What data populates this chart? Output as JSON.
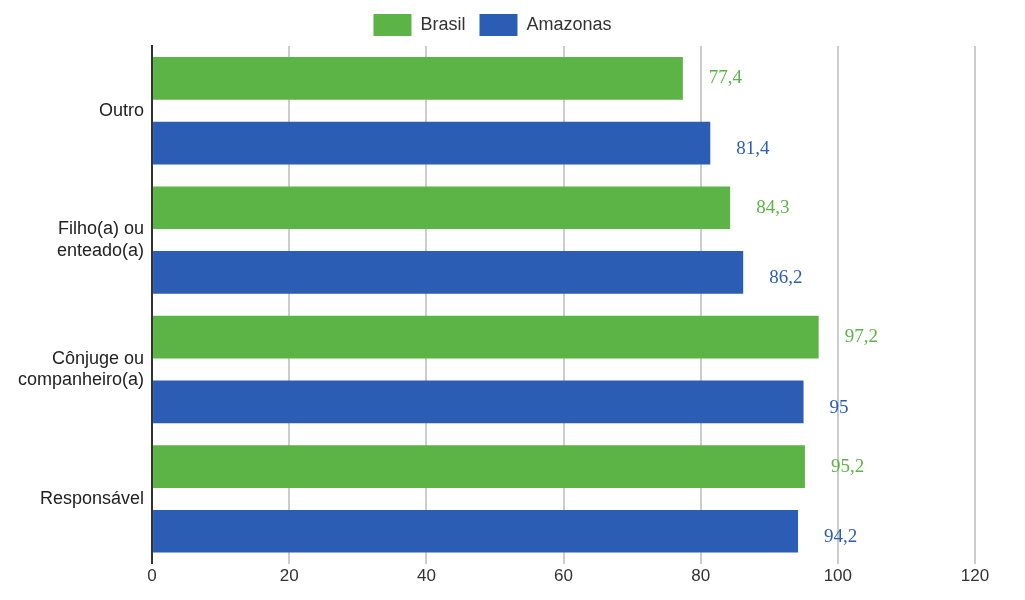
{
  "chart_data": {
    "type": "bar",
    "orientation": "horizontal",
    "categories": [
      "Outro",
      "Filho(a) ou enteado(a)",
      "Cônjuge ou companheiro(a)",
      "Responsável"
    ],
    "series": [
      {
        "name": "Brasil",
        "color": "#5cb346",
        "values": [
          77.4,
          84.3,
          97.2,
          95.2
        ],
        "value_labels": [
          "77,4",
          "84,3",
          "97,2",
          "95,2"
        ]
      },
      {
        "name": "Amazonas",
        "color": "#2b5db5",
        "values": [
          81.4,
          86.2,
          95,
          94.2
        ],
        "value_labels": [
          "81,4",
          "86,2",
          "95",
          "94,2"
        ]
      }
    ],
    "xlim": [
      0,
      120
    ],
    "xticks": [
      0,
      20,
      40,
      60,
      80,
      100,
      120
    ],
    "grid": "x",
    "legend": "top"
  }
}
